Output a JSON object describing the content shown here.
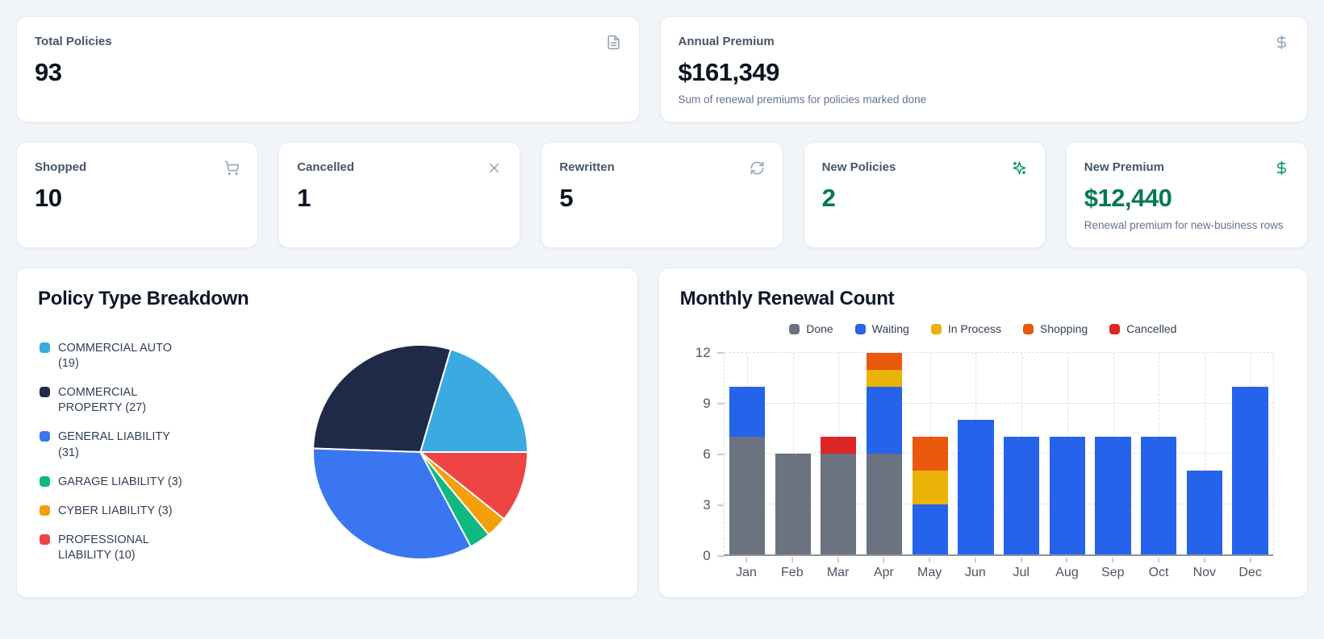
{
  "page": {
    "background": "#f1f5f9"
  },
  "colors": {
    "bg": "#f1f5f9",
    "card_border": "#e7ebf1",
    "muted_icon": "#94a3b8",
    "accent_green": "#047857",
    "accent_green_icon": "#059669"
  },
  "kpi_row_1": [
    {
      "label": "Total Policies",
      "value": "93",
      "icon": "file-text-icon"
    },
    {
      "label": "Annual Premium",
      "value": "$161,349",
      "subtitle": "Sum of renewal premiums for policies marked done",
      "icon": "dollar-sign-icon"
    }
  ],
  "kpi_row_2": [
    {
      "label": "Shopped",
      "value": "10",
      "icon": "shopping-cart-icon"
    },
    {
      "label": "Cancelled",
      "value": "1",
      "icon": "x-icon"
    },
    {
      "label": "Rewritten",
      "value": "5",
      "icon": "refresh-icon"
    },
    {
      "label": "New Policies",
      "value": "2",
      "icon": "sparkles-icon",
      "accent": true
    },
    {
      "label": "New Premium",
      "value": "$12,440",
      "subtitle": "Renewal premium for new-business rows",
      "icon": "dollar-sign-icon",
      "accent": true
    }
  ],
  "chart_data": [
    {
      "type": "pie",
      "title": "Policy Type Breakdown",
      "legend_position": "left",
      "start_angle_deg": 0,
      "direction": "counterclockwise",
      "slices": [
        {
          "label": "COMMERCIAL AUTO",
          "value": 19,
          "color": "#3BAAE0"
        },
        {
          "label": "COMMERCIAL PROPERTY",
          "value": 27,
          "color": "#1E2A47"
        },
        {
          "label": "GENERAL LIABILITY",
          "value": 31,
          "color": "#3B76F2"
        },
        {
          "label": "GARAGE LIABILITY",
          "value": 3,
          "color": "#10B981"
        },
        {
          "label": "CYBER LIABILITY",
          "value": 3,
          "color": "#F59E0B"
        },
        {
          "label": "PROFESSIONAL LIABILITY",
          "value": 10,
          "color": "#EF4444"
        }
      ]
    },
    {
      "type": "bar",
      "stacked": true,
      "title": "Monthly Renewal Count",
      "legend_position": "top",
      "grid": "dashed",
      "xlabel": "",
      "ylabel": "",
      "ylim": [
        0,
        12
      ],
      "yticks": [
        0,
        3,
        6,
        9,
        12
      ],
      "categories": [
        "Jan",
        "Feb",
        "Mar",
        "Apr",
        "May",
        "Jun",
        "Jul",
        "Aug",
        "Sep",
        "Oct",
        "Nov",
        "Dec"
      ],
      "series": [
        {
          "name": "Done",
          "color": "#6B7280",
          "values": [
            7,
            6,
            6,
            6,
            0,
            0,
            0,
            0,
            0,
            0,
            0,
            0
          ]
        },
        {
          "name": "Waiting",
          "color": "#2563EB",
          "values": [
            3,
            0,
            0,
            4,
            3,
            8,
            7,
            7,
            7,
            7,
            5,
            10
          ]
        },
        {
          "name": "In Process",
          "color": "#EAB308",
          "values": [
            0,
            0,
            0,
            1,
            2,
            0,
            0,
            0,
            0,
            0,
            0,
            0
          ]
        },
        {
          "name": "Shopping",
          "color": "#EA580C",
          "values": [
            0,
            0,
            0,
            1,
            2,
            0,
            0,
            0,
            0,
            0,
            0,
            0
          ]
        },
        {
          "name": "Cancelled",
          "color": "#DC2626",
          "values": [
            0,
            0,
            1,
            0,
            0,
            0,
            0,
            0,
            0,
            0,
            0,
            0
          ]
        }
      ]
    }
  ]
}
